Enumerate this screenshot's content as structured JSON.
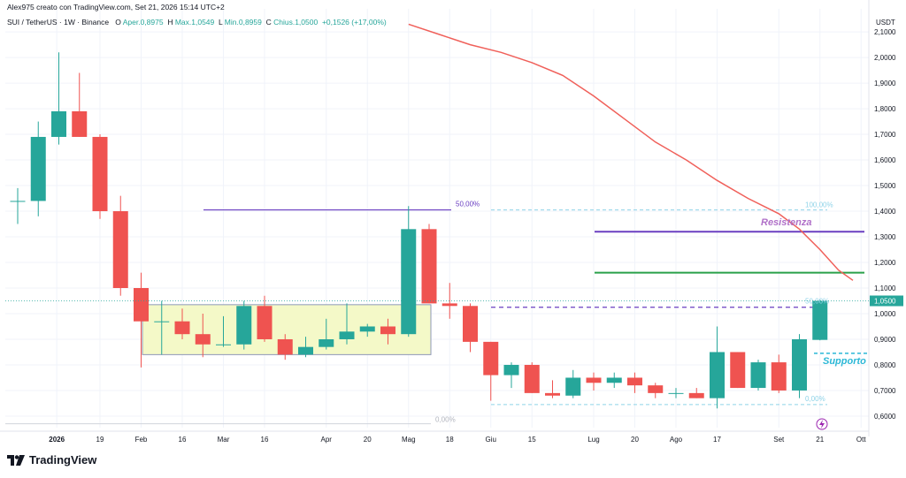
{
  "header": {
    "author_line": "Alex975 creato con TradingView.com, Set 21, 2026 15:14 UTC+2",
    "symbol": "SUI / TetherUS · 1W · Binance",
    "o_label": "O",
    "o_value": "Aper.0,8975",
    "h_label": "H",
    "h_value": "Max.1,0549",
    "l_label": "L",
    "l_value": "Min.0,8959",
    "c_label": "C",
    "c_value": "Chius.1,0500",
    "change": "+0,1526 (+17,00%)"
  },
  "footer": {
    "brand": "TradingView"
  },
  "colors": {
    "up": "#26a69a",
    "down": "#ef5350",
    "ma": "#f0605a",
    "resistance": "#6a3fc1",
    "support": "#2aa14a",
    "box_fill": "#f4f9c8",
    "box_border": "#8e98b8",
    "fib": "#8fd3e8",
    "label_annot": "#2ab7d6"
  },
  "chart_data": {
    "type": "candlestick",
    "currency": "USDT",
    "ylim": [
      0.555,
      2.19
    ],
    "y_ticks": [
      "2,1000",
      "2,0000",
      "1,9000",
      "1,8000",
      "1,7000",
      "1,6000",
      "1,5000",
      "1,4000",
      "1,3000",
      "1,2000",
      "1,1000",
      "1,0000",
      "0,9000",
      "0,8000",
      "0,7000",
      "0,6000"
    ],
    "x_ticks": [
      "2026",
      "19",
      "Feb",
      "16",
      "Mar",
      "16",
      "Apr",
      "20",
      "Mag",
      "18",
      "Giu",
      "15",
      "Lug",
      "20",
      "Ago",
      "17",
      "Set",
      "21",
      "Ott"
    ],
    "last_price_label": "1,0500",
    "candles": [
      {
        "o": 1.44,
        "h": 1.49,
        "l": 1.35,
        "c": 1.44
      },
      {
        "o": 1.44,
        "h": 1.75,
        "l": 1.38,
        "c": 1.69
      },
      {
        "o": 1.69,
        "h": 2.02,
        "l": 1.66,
        "c": 1.79
      },
      {
        "o": 1.79,
        "h": 1.94,
        "l": 1.69,
        "c": 1.69
      },
      {
        "o": 1.69,
        "h": 1.7,
        "l": 1.37,
        "c": 1.4
      },
      {
        "o": 1.4,
        "h": 1.46,
        "l": 1.07,
        "c": 1.1
      },
      {
        "o": 1.1,
        "h": 1.16,
        "l": 0.79,
        "c": 0.97
      },
      {
        "o": 0.97,
        "h": 1.05,
        "l": 0.84,
        "c": 0.97
      },
      {
        "o": 0.97,
        "h": 1.02,
        "l": 0.9,
        "c": 0.92
      },
      {
        "o": 0.92,
        "h": 1.0,
        "l": 0.83,
        "c": 0.88
      },
      {
        "o": 0.88,
        "h": 0.99,
        "l": 0.87,
        "c": 0.88
      },
      {
        "o": 0.88,
        "h": 1.05,
        "l": 0.86,
        "c": 1.03
      },
      {
        "o": 1.03,
        "h": 1.07,
        "l": 0.89,
        "c": 0.9
      },
      {
        "o": 0.9,
        "h": 0.92,
        "l": 0.82,
        "c": 0.84
      },
      {
        "o": 0.84,
        "h": 0.91,
        "l": 0.83,
        "c": 0.87
      },
      {
        "o": 0.87,
        "h": 0.98,
        "l": 0.86,
        "c": 0.9
      },
      {
        "o": 0.9,
        "h": 1.04,
        "l": 0.88,
        "c": 0.93
      },
      {
        "o": 0.93,
        "h": 0.96,
        "l": 0.91,
        "c": 0.95
      },
      {
        "o": 0.95,
        "h": 0.98,
        "l": 0.88,
        "c": 0.92
      },
      {
        "o": 0.92,
        "h": 1.42,
        "l": 0.91,
        "c": 1.33
      },
      {
        "o": 1.33,
        "h": 1.35,
        "l": 1.04,
        "c": 1.04
      },
      {
        "o": 1.04,
        "h": 1.12,
        "l": 0.98,
        "c": 1.03
      },
      {
        "o": 1.03,
        "h": 1.04,
        "l": 0.85,
        "c": 0.89
      },
      {
        "o": 0.89,
        "h": 0.89,
        "l": 0.66,
        "c": 0.76
      },
      {
        "o": 0.76,
        "h": 0.81,
        "l": 0.71,
        "c": 0.8
      },
      {
        "o": 0.8,
        "h": 0.81,
        "l": 0.69,
        "c": 0.69
      },
      {
        "o": 0.69,
        "h": 0.74,
        "l": 0.67,
        "c": 0.68
      },
      {
        "o": 0.68,
        "h": 0.78,
        "l": 0.67,
        "c": 0.75
      },
      {
        "o": 0.75,
        "h": 0.77,
        "l": 0.7,
        "c": 0.73
      },
      {
        "o": 0.73,
        "h": 0.77,
        "l": 0.71,
        "c": 0.75
      },
      {
        "o": 0.75,
        "h": 0.77,
        "l": 0.69,
        "c": 0.72
      },
      {
        "o": 0.72,
        "h": 0.73,
        "l": 0.67,
        "c": 0.69
      },
      {
        "o": 0.69,
        "h": 0.71,
        "l": 0.67,
        "c": 0.69
      },
      {
        "o": 0.69,
        "h": 0.71,
        "l": 0.67,
        "c": 0.67
      },
      {
        "o": 0.67,
        "h": 0.95,
        "l": 0.63,
        "c": 0.85
      },
      {
        "o": 0.85,
        "h": 0.85,
        "l": 0.71,
        "c": 0.71
      },
      {
        "o": 0.71,
        "h": 0.82,
        "l": 0.7,
        "c": 0.81
      },
      {
        "o": 0.81,
        "h": 0.84,
        "l": 0.69,
        "c": 0.7
      },
      {
        "o": 0.7,
        "h": 0.92,
        "l": 0.67,
        "c": 0.9
      },
      {
        "o": 0.8975,
        "h": 1.0549,
        "l": 0.8959,
        "c": 1.05
      }
    ],
    "moving_average": [
      {
        "i": 19.0,
        "v": 2.13
      },
      {
        "i": 20.5,
        "v": 2.09
      },
      {
        "i": 22.0,
        "v": 2.05
      },
      {
        "i": 23.5,
        "v": 2.02
      },
      {
        "i": 25.0,
        "v": 1.98
      },
      {
        "i": 26.5,
        "v": 1.93
      },
      {
        "i": 28.0,
        "v": 1.85
      },
      {
        "i": 29.5,
        "v": 1.76
      },
      {
        "i": 31.0,
        "v": 1.67
      },
      {
        "i": 32.5,
        "v": 1.6
      },
      {
        "i": 34.0,
        "v": 1.52
      },
      {
        "i": 35.5,
        "v": 1.45
      },
      {
        "i": 37.0,
        "v": 1.39
      },
      {
        "i": 38.0,
        "v": 1.33
      },
      {
        "i": 39.0,
        "v": 1.25
      },
      {
        "i": 39.9,
        "v": 1.17
      },
      {
        "i": 40.6,
        "v": 1.13
      }
    ],
    "annotations": {
      "resistance_label": "Resistenza",
      "resistance_value": 1.32,
      "support_label": "Supporto",
      "support_value": 0.845,
      "green_line_value": 1.16,
      "top_purple_value": 1.405,
      "top_purple_label": "50,00%",
      "dashed_purple_value": 1.025,
      "fib_right_top_label": "100,00%",
      "fib_right_top_value": 1.405,
      "fib_right_mid_label": "50,00%",
      "fib_right_bottom_label": "0,00%",
      "fib_right_bottom_value": 0.645,
      "fib_left_bottom_label": "0,00%",
      "range_box_top": 1.035,
      "range_box_bottom": 0.84
    }
  }
}
